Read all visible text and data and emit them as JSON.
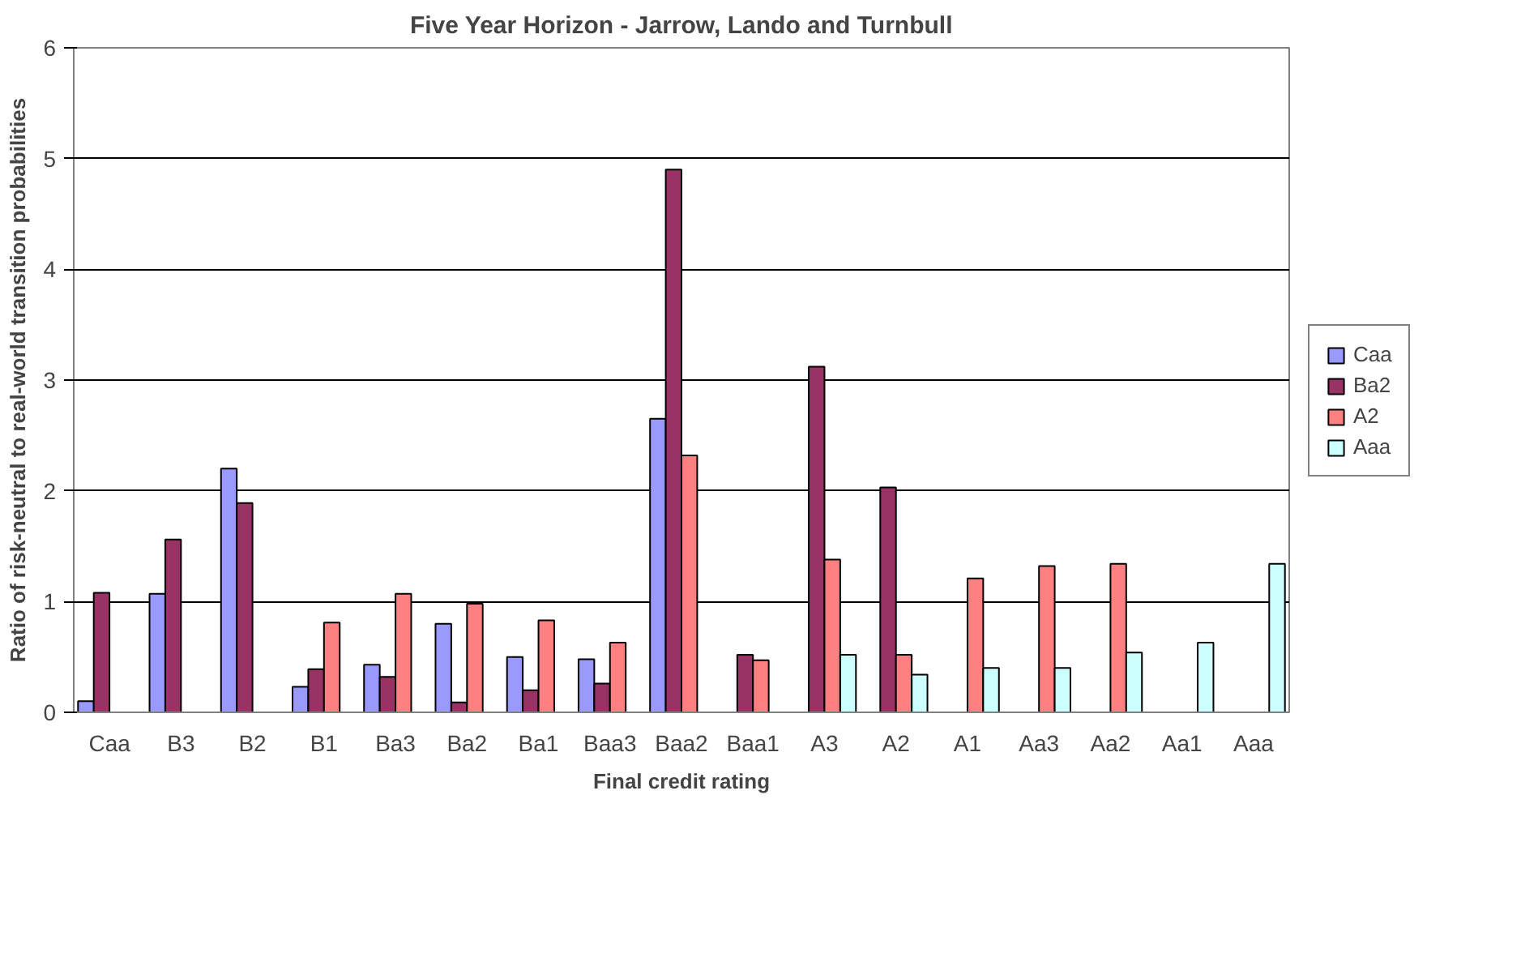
{
  "chart_data": {
    "type": "bar",
    "title": "Five Year Horizon - Jarrow, Lando and Turnbull",
    "xlabel": "Final credit rating",
    "ylabel": "Ratio of risk-neutral to real-world transition probabilities",
    "categories": [
      "Caa",
      "B3",
      "B2",
      "B1",
      "Ba3",
      "Ba2",
      "Ba1",
      "Baa3",
      "Baa2",
      "Baa1",
      "A3",
      "A2",
      "A1",
      "Aa3",
      "Aa2",
      "Aa1",
      "Aaa"
    ],
    "series": [
      {
        "name": "Caa",
        "color": "#9999ff",
        "values": [
          0.1,
          1.07,
          2.2,
          0.23,
          0.43,
          0.8,
          0.5,
          0.48,
          2.65,
          null,
          null,
          null,
          null,
          null,
          null,
          null,
          null
        ]
      },
      {
        "name": "Ba2",
        "color": "#993366",
        "values": [
          1.08,
          1.56,
          1.89,
          0.39,
          0.32,
          0.09,
          0.2,
          0.26,
          4.9,
          0.52,
          3.12,
          2.03,
          null,
          null,
          null,
          null,
          null
        ]
      },
      {
        "name": "A2",
        "color": "#ff8080",
        "values": [
          null,
          null,
          null,
          0.81,
          1.07,
          0.98,
          0.83,
          0.63,
          2.32,
          0.47,
          1.38,
          0.52,
          1.21,
          1.32,
          1.34,
          null,
          null
        ]
      },
      {
        "name": "Aaa",
        "color": "#ccffff",
        "values": [
          null,
          null,
          null,
          null,
          null,
          null,
          null,
          null,
          null,
          null,
          0.52,
          0.34,
          0.4,
          0.4,
          0.54,
          0.63,
          1.34
        ]
      }
    ],
    "ylim": [
      0,
      6
    ],
    "yticks": [
      0,
      1,
      2,
      3,
      4,
      5,
      6
    ],
    "grid": "y",
    "legend": "right"
  }
}
